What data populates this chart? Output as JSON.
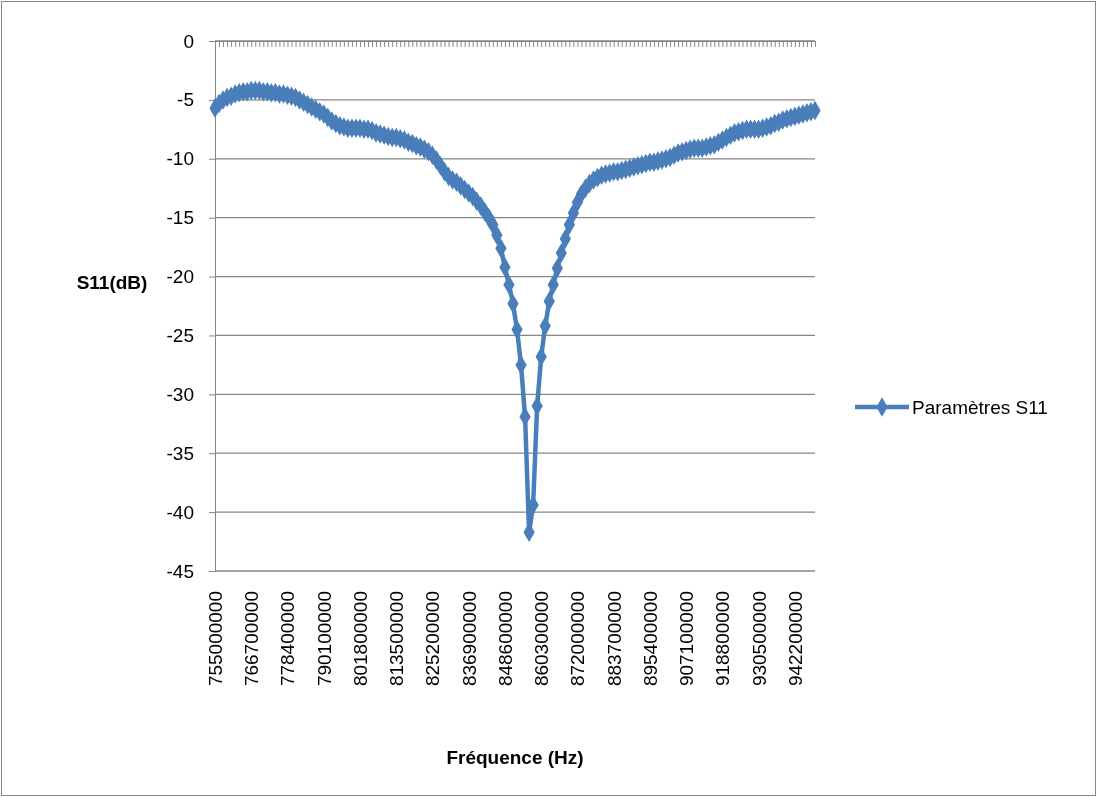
{
  "chart_data": {
    "type": "line",
    "xlabel": "Fréquence (Hz)",
    "ylabel": "S11(dB)",
    "categories": [
      "755000000",
      null,
      null,
      null,
      null,
      null,
      null,
      null,
      null,
      "766700000",
      null,
      null,
      null,
      null,
      null,
      null,
      null,
      null,
      "778400000",
      null,
      null,
      null,
      null,
      null,
      null,
      null,
      null,
      "790100000",
      null,
      null,
      null,
      null,
      null,
      null,
      null,
      null,
      "801800000",
      null,
      null,
      null,
      null,
      null,
      null,
      null,
      null,
      "813500000",
      null,
      null,
      null,
      null,
      null,
      null,
      null,
      null,
      "825200000",
      null,
      null,
      null,
      null,
      null,
      null,
      null,
      null,
      "836900000",
      null,
      null,
      null,
      null,
      null,
      null,
      null,
      null,
      "848600000",
      null,
      null,
      null,
      null,
      null,
      null,
      null,
      null,
      "860300000",
      null,
      null,
      null,
      null,
      null,
      null,
      null,
      null,
      "872000000",
      null,
      null,
      null,
      null,
      null,
      null,
      null,
      null,
      "883700000",
      null,
      null,
      null,
      null,
      null,
      null,
      null,
      null,
      "895400000",
      null,
      null,
      null,
      null,
      null,
      null,
      null,
      null,
      "907100000",
      null,
      null,
      null,
      null,
      null,
      null,
      null,
      null,
      "918800000",
      null,
      null,
      null,
      null,
      null,
      null,
      null,
      null,
      "930500000",
      null,
      null,
      null,
      null,
      null,
      null,
      null,
      null,
      "942200000",
      null,
      null,
      null,
      null,
      null
    ],
    "series": [
      {
        "name": "Paramètres S11",
        "color": "#4a7ebb",
        "values": [
          -5.7,
          -5.3,
          -5.0,
          -4.8,
          -4.7,
          -4.5,
          -4.4,
          -4.3,
          -4.3,
          -4.2,
          -4.2,
          -4.2,
          -4.3,
          -4.3,
          -4.4,
          -4.4,
          -4.5,
          -4.5,
          -4.6,
          -4.7,
          -4.8,
          -5.0,
          -5.2,
          -5.4,
          -5.6,
          -5.8,
          -6.0,
          -6.2,
          -6.5,
          -6.8,
          -7.0,
          -7.2,
          -7.3,
          -7.4,
          -7.4,
          -7.4,
          -7.4,
          -7.5,
          -7.5,
          -7.6,
          -7.8,
          -7.9,
          -8.0,
          -8.1,
          -8.2,
          -8.2,
          -8.3,
          -8.4,
          -8.6,
          -8.7,
          -8.9,
          -9.0,
          -9.2,
          -9.4,
          -9.7,
          -10.1,
          -10.6,
          -11.1,
          -11.5,
          -11.8,
          -12.0,
          -12.3,
          -12.6,
          -12.9,
          -13.2,
          -13.6,
          -14.0,
          -14.5,
          -15.0,
          -15.6,
          -16.5,
          -17.6,
          -19.2,
          -20.7,
          -22.3,
          -24.5,
          -27.5,
          -31.9,
          -41.7,
          -39.4,
          -31.0,
          -26.8,
          -24.2,
          -22.1,
          -20.7,
          -19.3,
          -18.0,
          -16.8,
          -15.6,
          -14.6,
          -13.7,
          -13.0,
          -12.5,
          -12.1,
          -11.8,
          -11.6,
          -11.4,
          -11.3,
          -11.2,
          -11.1,
          -11.1,
          -11.0,
          -10.9,
          -10.8,
          -10.7,
          -10.6,
          -10.5,
          -10.4,
          -10.3,
          -10.3,
          -10.2,
          -10.1,
          -10.0,
          -9.9,
          -9.7,
          -9.5,
          -9.4,
          -9.3,
          -9.2,
          -9.1,
          -9.1,
          -9.1,
          -9.0,
          -8.9,
          -8.8,
          -8.6,
          -8.4,
          -8.2,
          -8.0,
          -7.8,
          -7.7,
          -7.6,
          -7.5,
          -7.5,
          -7.5,
          -7.5,
          -7.4,
          -7.3,
          -7.2,
          -7.0,
          -6.9,
          -6.7,
          -6.6,
          -6.5,
          -6.4,
          -6.3,
          -6.2,
          -6.1,
          -6.0,
          -5.9
        ]
      }
    ],
    "ylim": [
      -45,
      0
    ],
    "yticks": [
      -45,
      -40,
      -35,
      -30,
      -25,
      -20,
      -15,
      -10,
      -5,
      0
    ],
    "grid": "y",
    "legend": "right",
    "marker": "diamond",
    "line_style": "solid"
  }
}
